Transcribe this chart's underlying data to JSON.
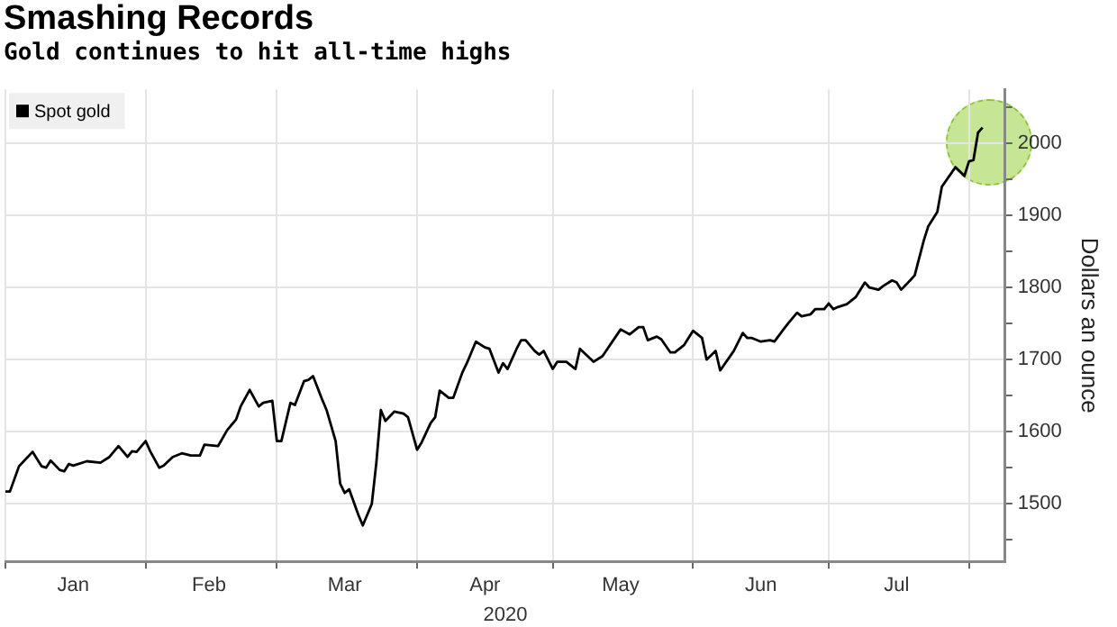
{
  "chart_data": {
    "type": "line",
    "title": "Smashing Records",
    "subtitle": "Gold continues to hit all-time highs",
    "xlabel": "2020",
    "ylabel": "Dollars an ounce",
    "x": [
      "2020-01-01",
      "2020-01-02",
      "2020-01-04",
      "2020-01-07",
      "2020-01-09",
      "2020-01-10",
      "2020-01-11",
      "2020-01-13",
      "2020-01-14",
      "2020-01-15",
      "2020-01-16",
      "2020-01-19",
      "2020-01-22",
      "2020-01-24",
      "2020-01-26",
      "2020-01-28",
      "2020-01-29",
      "2020-01-30",
      "2020-02-01",
      "2020-02-02",
      "2020-02-04",
      "2020-02-05",
      "2020-02-07",
      "2020-02-09",
      "2020-02-11",
      "2020-02-13",
      "2020-02-14",
      "2020-02-17",
      "2020-02-19",
      "2020-02-21",
      "2020-02-22",
      "2020-02-24",
      "2020-02-26",
      "2020-02-27",
      "2020-02-29",
      "2020-03-01",
      "2020-03-02",
      "2020-03-04",
      "2020-03-05",
      "2020-03-07",
      "2020-03-08",
      "2020-03-09",
      "2020-03-11",
      "2020-03-12",
      "2020-03-14",
      "2020-03-15",
      "2020-03-16",
      "2020-03-17",
      "2020-03-19",
      "2020-03-20",
      "2020-03-22",
      "2020-03-23",
      "2020-03-24",
      "2020-03-25",
      "2020-03-27",
      "2020-03-29",
      "2020-03-30",
      "2020-04-01",
      "2020-04-02",
      "2020-04-04",
      "2020-04-05",
      "2020-04-06",
      "2020-04-08",
      "2020-04-09",
      "2020-04-11",
      "2020-04-12",
      "2020-04-14",
      "2020-04-16",
      "2020-04-17",
      "2020-04-19",
      "2020-04-20",
      "2020-04-21",
      "2020-04-23",
      "2020-04-24",
      "2020-04-25",
      "2020-04-27",
      "2020-04-28",
      "2020-04-29",
      "2020-05-01",
      "2020-05-02",
      "2020-05-04",
      "2020-05-06",
      "2020-05-07",
      "2020-05-10",
      "2020-05-12",
      "2020-05-16",
      "2020-05-18",
      "2020-05-20",
      "2020-05-21",
      "2020-05-22",
      "2020-05-24",
      "2020-05-25",
      "2020-05-27",
      "2020-05-28",
      "2020-05-30",
      "2020-06-01",
      "2020-06-03",
      "2020-06-04",
      "2020-06-06",
      "2020-06-07",
      "2020-06-10",
      "2020-06-12",
      "2020-06-13",
      "2020-06-14",
      "2020-06-16",
      "2020-06-18",
      "2020-06-19",
      "2020-06-21",
      "2020-06-22",
      "2020-06-24",
      "2020-06-25",
      "2020-06-27",
      "2020-06-28",
      "2020-06-30",
      "2020-07-01",
      "2020-07-02",
      "2020-07-03",
      "2020-07-05",
      "2020-07-07",
      "2020-07-09",
      "2020-07-10",
      "2020-07-12",
      "2020-07-13",
      "2020-07-15",
      "2020-07-16",
      "2020-07-17",
      "2020-07-19",
      "2020-07-20",
      "2020-07-22",
      "2020-07-23",
      "2020-07-25",
      "2020-07-26",
      "2020-07-29",
      "2020-07-31",
      "2020-08-01",
      "2020-08-02",
      "2020-08-03",
      "2020-08-04"
    ],
    "series": [
      {
        "name": "Spot gold",
        "color": "#000000",
        "values": [
          1517,
          1517,
          1552,
          1572,
          1552,
          1550,
          1560,
          1547,
          1545,
          1555,
          1553,
          1559,
          1557,
          1565,
          1580,
          1565,
          1573,
          1572,
          1587,
          1573,
          1550,
          1553,
          1565,
          1570,
          1567,
          1567,
          1582,
          1580,
          1602,
          1617,
          1635,
          1658,
          1635,
          1640,
          1643,
          1587,
          1587,
          1640,
          1637,
          1670,
          1672,
          1677,
          1645,
          1630,
          1587,
          1528,
          1515,
          1520,
          1485,
          1470,
          1500,
          1557,
          1630,
          1615,
          1628,
          1625,
          1620,
          1575,
          1585,
          1612,
          1620,
          1657,
          1647,
          1647,
          1682,
          1695,
          1725,
          1717,
          1715,
          1682,
          1695,
          1687,
          1715,
          1727,
          1727,
          1712,
          1707,
          1712,
          1687,
          1697,
          1697,
          1687,
          1715,
          1697,
          1705,
          1742,
          1735,
          1745,
          1745,
          1727,
          1732,
          1728,
          1710,
          1710,
          1720,
          1740,
          1730,
          1700,
          1712,
          1685,
          1712,
          1737,
          1730,
          1730,
          1725,
          1727,
          1725,
          1742,
          1750,
          1765,
          1760,
          1763,
          1770,
          1770,
          1778,
          1770,
          1773,
          1777,
          1787,
          1807,
          1800,
          1797,
          1802,
          1810,
          1807,
          1797,
          1810,
          1817,
          1865,
          1885,
          1905,
          1940,
          1967,
          1955,
          1975,
          1977,
          2015,
          2022
        ]
      }
    ],
    "xlim": [
      "2020-01-01",
      "2020-08-09"
    ],
    "xticks": [
      {
        "value": "2020-01-01",
        "label": null
      },
      {
        "value": "2020-01-16",
        "label": "Jan"
      },
      {
        "value": "2020-02-01",
        "label": null
      },
      {
        "value": "2020-02-15",
        "label": "Feb"
      },
      {
        "value": "2020-03-01",
        "label": null
      },
      {
        "value": "2020-03-16",
        "label": "Mar"
      },
      {
        "value": "2020-04-01",
        "label": null
      },
      {
        "value": "2020-04-16",
        "label": "Apr"
      },
      {
        "value": "2020-05-01",
        "label": null
      },
      {
        "value": "2020-05-16",
        "label": "May"
      },
      {
        "value": "2020-06-01",
        "label": null
      },
      {
        "value": "2020-06-16",
        "label": "Jun"
      },
      {
        "value": "2020-07-01",
        "label": null
      },
      {
        "value": "2020-07-16",
        "label": "Jul"
      },
      {
        "value": "2020-08-01",
        "label": null
      }
    ],
    "ylim": [
      1420,
      2075
    ],
    "yticks": [
      {
        "value": 1450,
        "label": null
      },
      1500,
      {
        "value": 1550,
        "label": null
      },
      1600,
      {
        "value": 1650,
        "label": null
      },
      1700,
      {
        "value": 1750,
        "label": null
      },
      1800,
      {
        "value": 1850,
        "label": null
      },
      1900,
      {
        "value": 1950,
        "label": null
      },
      2000,
      {
        "value": 2050,
        "label": null
      }
    ],
    "grid": true,
    "legend": "top left",
    "marker": "none",
    "line_style": "solid"
  }
}
